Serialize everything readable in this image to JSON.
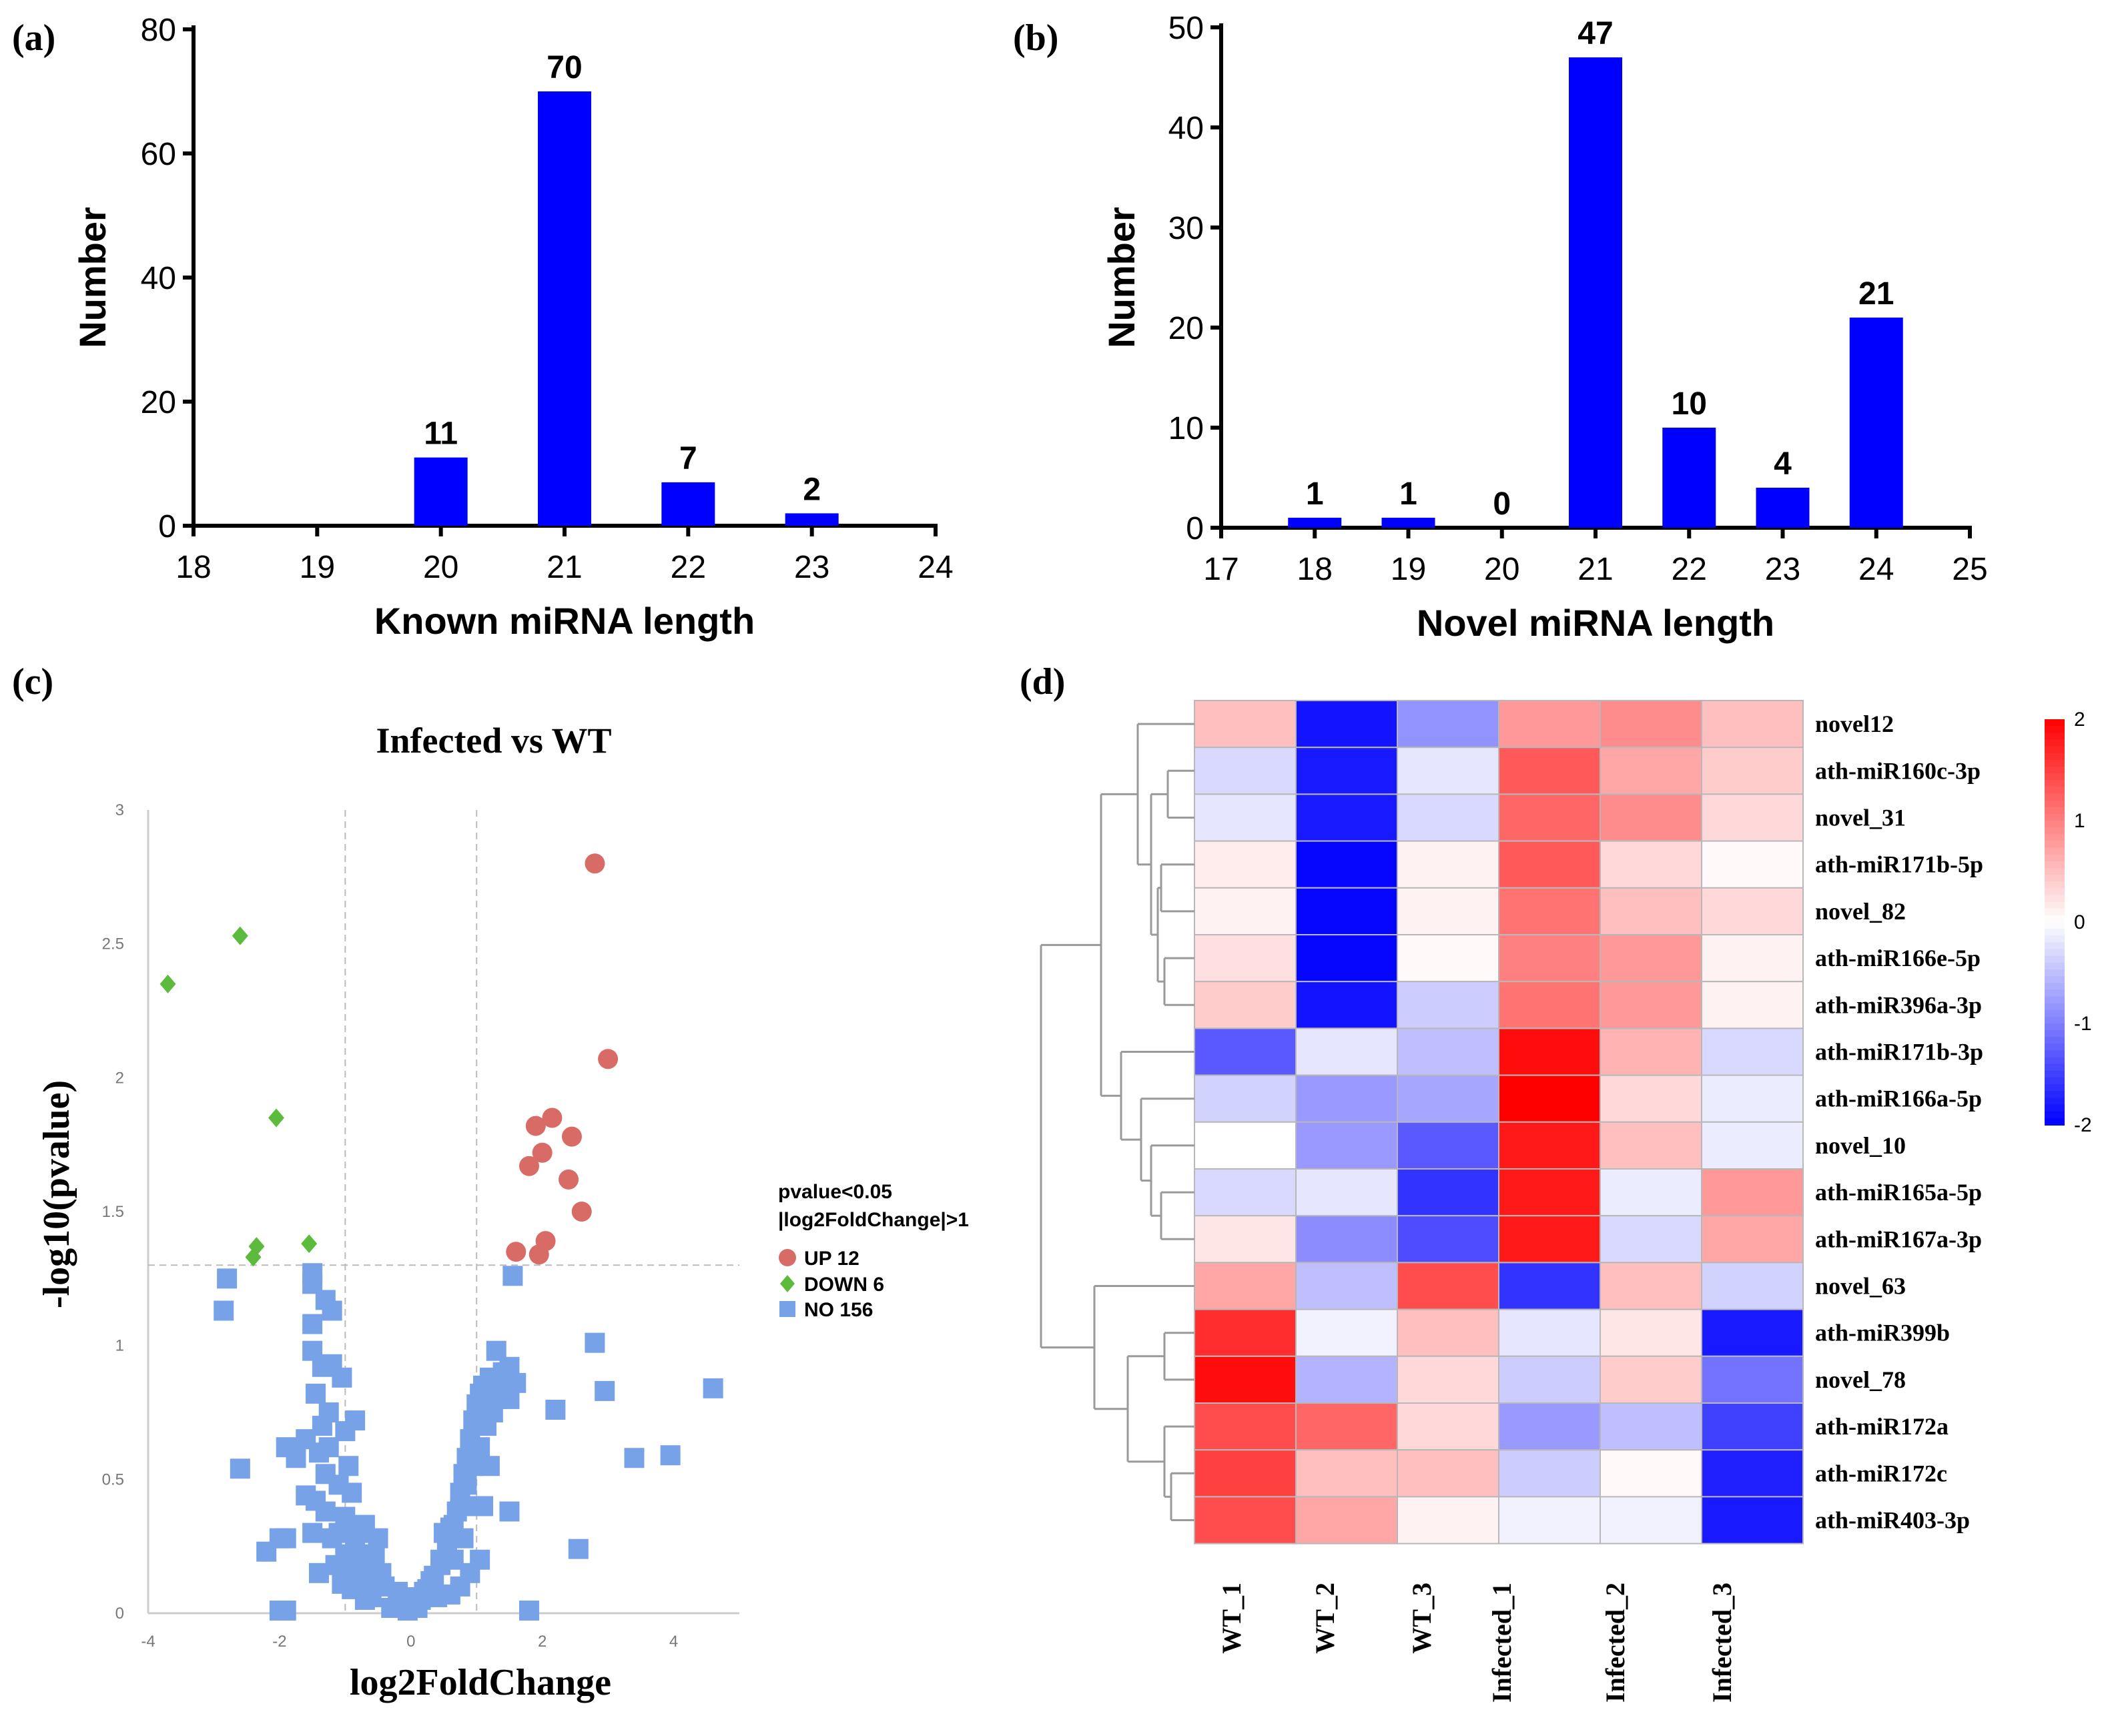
{
  "panels": {
    "a": "(a)",
    "b": "(b)",
    "c": "(c)",
    "d": "(d)"
  },
  "chart_data": [
    {
      "id": "a",
      "type": "bar",
      "title": "",
      "xlabel": "Known miRNA length",
      "ylabel": "Number",
      "xlim": [
        18,
        24
      ],
      "ylim": [
        0,
        80
      ],
      "xticks": [
        "18",
        "19",
        "20",
        "21",
        "22",
        "23",
        "24"
      ],
      "yticks": [
        "0",
        "20",
        "40",
        "60",
        "80"
      ],
      "x": [
        20,
        21,
        22,
        23
      ],
      "values": [
        11,
        70,
        7,
        2
      ],
      "labels": [
        "11",
        "70",
        "7",
        "2"
      ],
      "color": "#0000ff"
    },
    {
      "id": "b",
      "type": "bar",
      "title": "",
      "xlabel": "Novel miRNA length",
      "ylabel": "Number",
      "xlim": [
        17,
        25
      ],
      "ylim": [
        0,
        50
      ],
      "xticks": [
        "17",
        "18",
        "19",
        "20",
        "21",
        "22",
        "23",
        "24",
        "25"
      ],
      "yticks": [
        "0",
        "10",
        "20",
        "30",
        "40",
        "50"
      ],
      "x": [
        18,
        19,
        20,
        21,
        22,
        23,
        24
      ],
      "values": [
        1,
        1,
        0,
        47,
        10,
        4,
        21
      ],
      "labels": [
        "1",
        "1",
        "0",
        "47",
        "10",
        "4",
        "21"
      ],
      "color": "#0000ff"
    },
    {
      "id": "c",
      "type": "scatter",
      "title": "Infected vs WT",
      "xlabel": "log2FoldChange",
      "ylabel": "-log10(pvalue)",
      "xlim": [
        -4,
        5
      ],
      "ylim": [
        0,
        3
      ],
      "xticks": [
        "-4",
        "-2",
        "0",
        "2",
        "4"
      ],
      "yticks": [
        "0",
        "0.5",
        "1",
        "1.5",
        "2",
        "2.5",
        "3"
      ],
      "thresholds": {
        "x": [
          -1,
          1
        ],
        "y": 1.3
      },
      "legend": {
        "title_line1": "pvalue<0.05",
        "title_line2": "|log2FoldChange|>1",
        "up": "UP 12",
        "down": "DOWN 6",
        "no": "NO 156"
      },
      "colors": {
        "up": "#d96b67",
        "down": "#5cba3c",
        "no": "#78a2e8"
      },
      "up": [
        [
          2.8,
          2.8
        ],
        [
          3.0,
          2.07
        ],
        [
          1.9,
          1.82
        ],
        [
          2.15,
          1.85
        ],
        [
          2.45,
          1.78
        ],
        [
          2.0,
          1.72
        ],
        [
          1.8,
          1.67
        ],
        [
          2.05,
          1.39
        ],
        [
          1.95,
          1.34
        ],
        [
          1.6,
          1.35
        ],
        [
          2.4,
          1.62
        ],
        [
          2.6,
          1.5
        ]
      ],
      "down": [
        [
          -3.7,
          2.35
        ],
        [
          -2.6,
          2.53
        ],
        [
          -2.05,
          1.85
        ],
        [
          -1.55,
          1.38
        ],
        [
          -2.35,
          1.37
        ],
        [
          -2.4,
          1.33
        ]
      ],
      "no": [
        [
          -2.8,
          1.25
        ],
        [
          -2.85,
          1.13
        ],
        [
          -1.5,
          1.27
        ],
        [
          -1.5,
          1.23
        ],
        [
          -1.3,
          1.17
        ],
        [
          -1.2,
          1.13
        ],
        [
          -1.5,
          1.08
        ],
        [
          -1.5,
          0.98
        ],
        [
          -1.35,
          0.92
        ],
        [
          -1.2,
          0.93
        ],
        [
          -1.05,
          0.88
        ],
        [
          -1.45,
          0.82
        ],
        [
          -1.25,
          0.75
        ],
        [
          -1.0,
          0.68
        ],
        [
          -0.85,
          0.72
        ],
        [
          -1.6,
          0.65
        ],
        [
          -1.9,
          0.62
        ],
        [
          -1.75,
          0.58
        ],
        [
          -1.3,
          0.52
        ],
        [
          -1.1,
          0.48
        ],
        [
          -0.9,
          0.45
        ],
        [
          -1.45,
          0.42
        ],
        [
          -1.3,
          0.38
        ],
        [
          -1.0,
          0.36
        ],
        [
          -0.7,
          0.33
        ],
        [
          -1.5,
          0.3
        ],
        [
          -1.2,
          0.28
        ],
        [
          -0.85,
          0.25
        ],
        [
          -0.55,
          0.22
        ],
        [
          -1.9,
          0.28
        ],
        [
          -2.0,
          0.28
        ],
        [
          -2.2,
          0.23
        ],
        [
          -1.15,
          0.18
        ],
        [
          -0.85,
          0.15
        ],
        [
          -0.6,
          0.12
        ],
        [
          -0.4,
          0.1
        ],
        [
          -0.2,
          0.08
        ],
        [
          -0.1,
          0.05
        ],
        [
          0.05,
          0.04
        ],
        [
          0.1,
          0.02
        ],
        [
          -0.05,
          0.01
        ],
        [
          -2.0,
          0.01
        ],
        [
          -1.9,
          0.01
        ],
        [
          -2.6,
          0.54
        ],
        [
          -1.05,
          0.11
        ],
        [
          -0.75,
          0.18
        ],
        [
          -0.45,
          0.15
        ],
        [
          0.2,
          0.08
        ],
        [
          0.3,
          0.12
        ],
        [
          0.45,
          0.18
        ],
        [
          0.55,
          0.25
        ],
        [
          0.6,
          0.32
        ],
        [
          0.7,
          0.38
        ],
        [
          0.75,
          0.45
        ],
        [
          0.8,
          0.52
        ],
        [
          0.85,
          0.58
        ],
        [
          0.9,
          0.65
        ],
        [
          0.95,
          0.72
        ],
        [
          1.0,
          0.78
        ],
        [
          1.05,
          0.82
        ],
        [
          1.1,
          0.85
        ],
        [
          1.2,
          0.88
        ],
        [
          1.3,
          0.87
        ],
        [
          1.4,
          0.9
        ],
        [
          1.5,
          0.92
        ],
        [
          1.6,
          0.86
        ],
        [
          1.4,
          0.82
        ],
        [
          1.3,
          0.8
        ],
        [
          1.25,
          0.75
        ],
        [
          1.15,
          0.7
        ],
        [
          1.05,
          0.62
        ],
        [
          0.95,
          0.55
        ],
        [
          0.85,
          0.48
        ],
        [
          0.75,
          0.4
        ],
        [
          0.65,
          0.33
        ],
        [
          0.55,
          0.26
        ],
        [
          0.45,
          0.2
        ],
        [
          0.35,
          0.14
        ],
        [
          0.25,
          0.09
        ],
        [
          0.15,
          0.05
        ],
        [
          1.3,
          0.98
        ],
        [
          1.5,
          0.8
        ],
        [
          1.55,
          1.26
        ],
        [
          2.2,
          0.76
        ],
        [
          2.8,
          1.01
        ],
        [
          2.95,
          0.83
        ],
        [
          3.4,
          0.58
        ],
        [
          3.95,
          0.59
        ],
        [
          4.6,
          0.84
        ],
        [
          2.55,
          0.24
        ],
        [
          1.5,
          0.38
        ],
        [
          1.8,
          0.01
        ],
        [
          1.05,
          0.2
        ],
        [
          0.9,
          0.15
        ],
        [
          0.75,
          0.1
        ],
        [
          0.6,
          0.07
        ],
        [
          -0.3,
          0.02
        ],
        [
          -0.6,
          0.06
        ],
        [
          -0.9,
          0.09
        ],
        [
          -1.1,
          0.3
        ],
        [
          -1.4,
          0.6
        ],
        [
          -1.6,
          0.44
        ],
        [
          -1.25,
          0.62
        ],
        [
          -0.95,
          0.55
        ],
        [
          -1.35,
          0.7
        ],
        [
          -0.8,
          0.3
        ],
        [
          -0.5,
          0.28
        ],
        [
          0.5,
          0.3
        ],
        [
          0.8,
          0.28
        ],
        [
          1.1,
          0.4
        ],
        [
          1.2,
          0.55
        ],
        [
          0.95,
          0.4
        ],
        [
          0.65,
          0.2
        ],
        [
          0.4,
          0.06
        ],
        [
          -0.15,
          0.03
        ],
        [
          0.0,
          0.06
        ],
        [
          -0.7,
          0.05
        ],
        [
          -1.0,
          0.22
        ],
        [
          -1.4,
          0.15
        ]
      ]
    },
    {
      "id": "d",
      "type": "heatmap",
      "columns": [
        "WT_1",
        "WT_2",
        "WT_3",
        "Infected_1",
        "Infected_2",
        "Infected_3"
      ],
      "rows": [
        "novel12",
        "ath-miR160c-3p",
        "novel_31",
        "ath-miR171b-5p",
        "novel_82",
        "ath-miR166e-5p",
        "ath-miR396a-3p",
        "ath-miR171b-3p",
        "ath-miR166a-5p",
        "novel_10",
        "ath-miR165a-5p",
        "ath-miR167a-3p",
        "novel_63",
        "ath-miR399b",
        "novel_78",
        "ath-miR172a",
        "ath-miR172c",
        "ath-miR403-3p"
      ],
      "values": [
        [
          0.5,
          -1.85,
          -0.85,
          0.8,
          0.9,
          0.5
        ],
        [
          -0.3,
          -1.8,
          -0.2,
          1.3,
          0.7,
          0.4
        ],
        [
          -0.2,
          -1.8,
          -0.3,
          1.2,
          0.9,
          0.3
        ],
        [
          0.15,
          -1.95,
          0.1,
          1.3,
          0.3,
          0.05
        ],
        [
          0.1,
          -1.95,
          0.1,
          1.1,
          0.5,
          0.3
        ],
        [
          0.25,
          -1.95,
          0.05,
          1.0,
          0.8,
          0.1
        ],
        [
          0.4,
          -1.85,
          -0.4,
          1.1,
          0.8,
          0.1
        ],
        [
          -1.3,
          -0.2,
          -0.5,
          1.9,
          0.6,
          -0.3
        ],
        [
          -0.35,
          -0.8,
          -0.7,
          2.0,
          0.3,
          -0.15
        ],
        [
          0.0,
          -0.8,
          -1.3,
          1.8,
          0.5,
          -0.15
        ],
        [
          -0.3,
          -0.2,
          -1.6,
          1.8,
          -0.15,
          0.8
        ],
        [
          0.2,
          -0.9,
          -1.4,
          1.8,
          -0.3,
          0.7
        ],
        [
          0.7,
          -0.5,
          1.4,
          -1.6,
          0.5,
          -0.35
        ],
        [
          1.65,
          -0.1,
          0.5,
          -0.2,
          0.2,
          -1.8
        ],
        [
          1.9,
          -0.6,
          0.3,
          -0.4,
          0.4,
          -1.1
        ],
        [
          1.4,
          1.2,
          0.3,
          -0.8,
          -0.5,
          -1.5
        ],
        [
          1.5,
          0.5,
          0.5,
          -0.4,
          0.05,
          -1.75
        ],
        [
          1.4,
          0.7,
          0.1,
          -0.1,
          -0.1,
          -1.8
        ]
      ],
      "colorbar": {
        "min": -2,
        "max": 2,
        "ticks": [
          "2",
          "1",
          "0",
          "-1",
          "-2"
        ]
      },
      "colors": {
        "low": "#0000ff",
        "mid": "#ffffff",
        "high": "#ff0000"
      }
    }
  ]
}
